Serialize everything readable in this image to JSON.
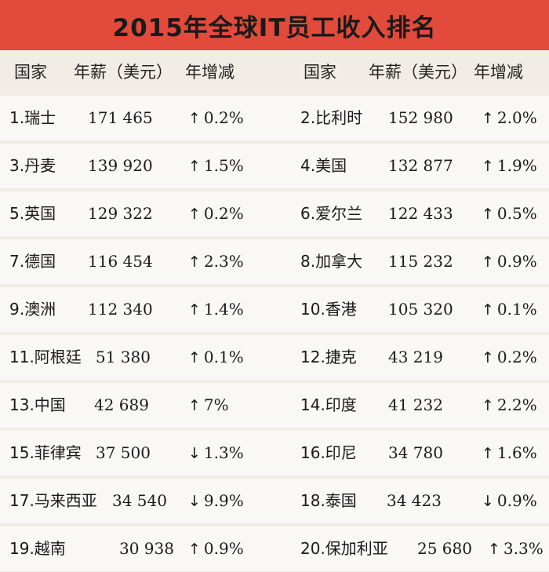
{
  "title": "2015年全球IT员工收入排名",
  "headers": [
    "国家",
    "年薪（美元）",
    "年增减"
  ],
  "rows": [
    {
      "left": {
        "country": "1.瑞士",
        "salary": "171 465",
        "dir": "up",
        "change": "0.2%"
      },
      "right": {
        "country": "2.比利时",
        "salary": "152 980",
        "dir": "up",
        "change": "2.0%"
      }
    },
    {
      "left": {
        "country": "3.丹麦",
        "salary": "139 920",
        "dir": "up",
        "change": "1.5%"
      },
      "right": {
        "country": "4.美国",
        "salary": "132 877",
        "dir": "up",
        "change": "1.9%"
      }
    },
    {
      "left": {
        "country": "5.英国",
        "salary": "129 322",
        "dir": "up",
        "change": "0.2%"
      },
      "right": {
        "country": "6.爱尔兰",
        "salary": "122 433",
        "dir": "up",
        "change": "0.5%"
      }
    },
    {
      "left": {
        "country": "7.德国",
        "salary": "116 454",
        "dir": "up",
        "change": "2.3%"
      },
      "right": {
        "country": "8.加拿大",
        "salary": "115 232",
        "dir": "up",
        "change": "0.9%"
      }
    },
    {
      "left": {
        "country": "9.澳洲",
        "salary": "112 340",
        "dir": "up",
        "change": "1.4%"
      },
      "right": {
        "country": "10.香港",
        "salary": "105 320",
        "dir": "up",
        "change": "0.1%"
      }
    },
    {
      "left": {
        "country": "11.阿根廷",
        "salary": "51 380",
        "dir": "up",
        "change": "0.1%"
      },
      "right": {
        "country": "12.捷克",
        "salary": "43 219",
        "dir": "up",
        "change": "0.2%"
      }
    },
    {
      "left": {
        "country": "13.中国",
        "salary": "42 689",
        "dir": "up",
        "change": "7%"
      },
      "right": {
        "country": "14.印度",
        "salary": "41 232",
        "dir": "up",
        "change": "2.2%"
      }
    },
    {
      "left": {
        "country": "15.菲律宾",
        "salary": "37 500",
        "dir": "down",
        "change": "1.3%"
      },
      "right": {
        "country": "16.印尼",
        "salary": "34 780",
        "dir": "up",
        "change": "1.6%"
      }
    },
    {
      "left": {
        "country": "17.马来西亚",
        "salary": "34 540",
        "dir": "down",
        "change": "9.9%"
      },
      "right": {
        "country": "18.泰国",
        "salary": "34 423",
        "dir": "down",
        "change": "0.9%"
      }
    },
    {
      "left": {
        "country": "19.越南",
        "salary": "30 938",
        "dir": "up",
        "change": "0.9%"
      },
      "right": {
        "country": "20.保加利亚",
        "salary": "25 680",
        "dir": "up",
        "change": "3.3%"
      }
    }
  ],
  "arrows": {
    "up": "↑",
    "down": "↓"
  }
}
